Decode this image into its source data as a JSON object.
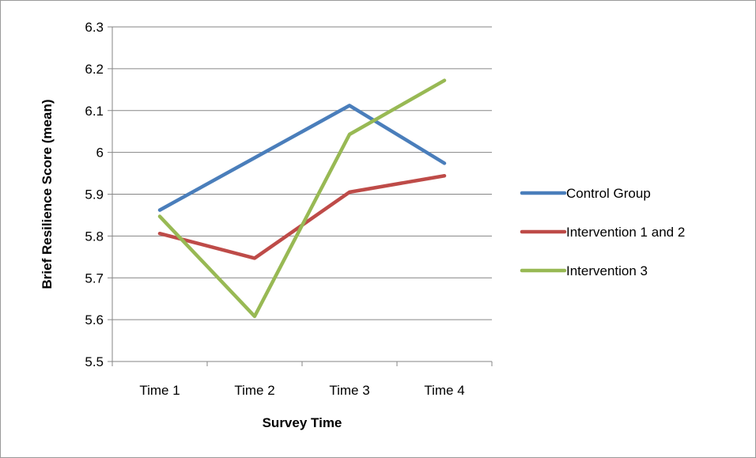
{
  "chart_data": {
    "type": "line",
    "title": "",
    "xlabel": "Survey Time",
    "ylabel": "Brief Resilience Score (mean)",
    "categories": [
      "Time 1",
      "Time 2",
      "Time 3",
      "Time 4"
    ],
    "ylim": [
      5.5,
      6.3
    ],
    "yticks": [
      5.5,
      5.6,
      5.7,
      5.8,
      5.9,
      6,
      6.1,
      6.2,
      6.3
    ],
    "grid": true,
    "legend_position": "right",
    "series": [
      {
        "name": "Control Group",
        "color": "#4a7ebb",
        "values": [
          5.862,
          5.987,
          6.112,
          5.974
        ]
      },
      {
        "name": "Intervention 1 and 2",
        "color": "#be4b48",
        "values": [
          5.806,
          5.747,
          5.905,
          5.944
        ]
      },
      {
        "name": "Intervention 3",
        "color": "#98b954",
        "values": [
          5.847,
          5.608,
          6.043,
          6.172
        ]
      }
    ]
  }
}
